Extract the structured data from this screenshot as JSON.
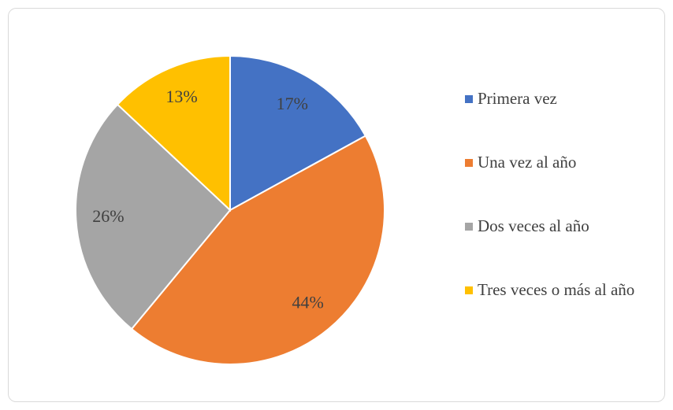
{
  "chart_data": {
    "type": "pie",
    "categories": [
      "Primera vez",
      "Una vez al año",
      "Dos veces al año",
      "Tres veces o más al año"
    ],
    "values": [
      17,
      44,
      26,
      13
    ],
    "value_labels": [
      "17%",
      "44%",
      "26%",
      "13%"
    ],
    "colors": [
      "#4472c4",
      "#ed7d31",
      "#a5a5a5",
      "#ffc000"
    ],
    "legend": "right"
  }
}
